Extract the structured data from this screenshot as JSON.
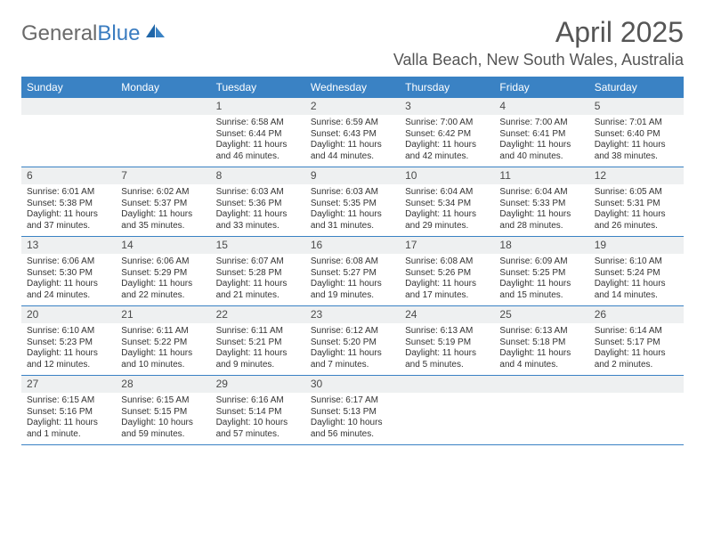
{
  "logo": {
    "general": "General",
    "blue": "Blue"
  },
  "title": "April 2025",
  "location": "Valla Beach, New South Wales, Australia",
  "colors": {
    "header_bg": "#3a82c4",
    "header_text": "#ffffff",
    "daynum_bg": "#eef0f1",
    "text": "#333333",
    "title_text": "#555555",
    "border": "#3a82c4"
  },
  "day_names": [
    "Sunday",
    "Monday",
    "Tuesday",
    "Wednesday",
    "Thursday",
    "Friday",
    "Saturday"
  ],
  "weeks": [
    [
      {
        "day": "",
        "sunrise": "",
        "sunset": "",
        "daylight": ""
      },
      {
        "day": "",
        "sunrise": "",
        "sunset": "",
        "daylight": ""
      },
      {
        "day": "1",
        "sunrise": "Sunrise: 6:58 AM",
        "sunset": "Sunset: 6:44 PM",
        "daylight": "Daylight: 11 hours and 46 minutes."
      },
      {
        "day": "2",
        "sunrise": "Sunrise: 6:59 AM",
        "sunset": "Sunset: 6:43 PM",
        "daylight": "Daylight: 11 hours and 44 minutes."
      },
      {
        "day": "3",
        "sunrise": "Sunrise: 7:00 AM",
        "sunset": "Sunset: 6:42 PM",
        "daylight": "Daylight: 11 hours and 42 minutes."
      },
      {
        "day": "4",
        "sunrise": "Sunrise: 7:00 AM",
        "sunset": "Sunset: 6:41 PM",
        "daylight": "Daylight: 11 hours and 40 minutes."
      },
      {
        "day": "5",
        "sunrise": "Sunrise: 7:01 AM",
        "sunset": "Sunset: 6:40 PM",
        "daylight": "Daylight: 11 hours and 38 minutes."
      }
    ],
    [
      {
        "day": "6",
        "sunrise": "Sunrise: 6:01 AM",
        "sunset": "Sunset: 5:38 PM",
        "daylight": "Daylight: 11 hours and 37 minutes."
      },
      {
        "day": "7",
        "sunrise": "Sunrise: 6:02 AM",
        "sunset": "Sunset: 5:37 PM",
        "daylight": "Daylight: 11 hours and 35 minutes."
      },
      {
        "day": "8",
        "sunrise": "Sunrise: 6:03 AM",
        "sunset": "Sunset: 5:36 PM",
        "daylight": "Daylight: 11 hours and 33 minutes."
      },
      {
        "day": "9",
        "sunrise": "Sunrise: 6:03 AM",
        "sunset": "Sunset: 5:35 PM",
        "daylight": "Daylight: 11 hours and 31 minutes."
      },
      {
        "day": "10",
        "sunrise": "Sunrise: 6:04 AM",
        "sunset": "Sunset: 5:34 PM",
        "daylight": "Daylight: 11 hours and 29 minutes."
      },
      {
        "day": "11",
        "sunrise": "Sunrise: 6:04 AM",
        "sunset": "Sunset: 5:33 PM",
        "daylight": "Daylight: 11 hours and 28 minutes."
      },
      {
        "day": "12",
        "sunrise": "Sunrise: 6:05 AM",
        "sunset": "Sunset: 5:31 PM",
        "daylight": "Daylight: 11 hours and 26 minutes."
      }
    ],
    [
      {
        "day": "13",
        "sunrise": "Sunrise: 6:06 AM",
        "sunset": "Sunset: 5:30 PM",
        "daylight": "Daylight: 11 hours and 24 minutes."
      },
      {
        "day": "14",
        "sunrise": "Sunrise: 6:06 AM",
        "sunset": "Sunset: 5:29 PM",
        "daylight": "Daylight: 11 hours and 22 minutes."
      },
      {
        "day": "15",
        "sunrise": "Sunrise: 6:07 AM",
        "sunset": "Sunset: 5:28 PM",
        "daylight": "Daylight: 11 hours and 21 minutes."
      },
      {
        "day": "16",
        "sunrise": "Sunrise: 6:08 AM",
        "sunset": "Sunset: 5:27 PM",
        "daylight": "Daylight: 11 hours and 19 minutes."
      },
      {
        "day": "17",
        "sunrise": "Sunrise: 6:08 AM",
        "sunset": "Sunset: 5:26 PM",
        "daylight": "Daylight: 11 hours and 17 minutes."
      },
      {
        "day": "18",
        "sunrise": "Sunrise: 6:09 AM",
        "sunset": "Sunset: 5:25 PM",
        "daylight": "Daylight: 11 hours and 15 minutes."
      },
      {
        "day": "19",
        "sunrise": "Sunrise: 6:10 AM",
        "sunset": "Sunset: 5:24 PM",
        "daylight": "Daylight: 11 hours and 14 minutes."
      }
    ],
    [
      {
        "day": "20",
        "sunrise": "Sunrise: 6:10 AM",
        "sunset": "Sunset: 5:23 PM",
        "daylight": "Daylight: 11 hours and 12 minutes."
      },
      {
        "day": "21",
        "sunrise": "Sunrise: 6:11 AM",
        "sunset": "Sunset: 5:22 PM",
        "daylight": "Daylight: 11 hours and 10 minutes."
      },
      {
        "day": "22",
        "sunrise": "Sunrise: 6:11 AM",
        "sunset": "Sunset: 5:21 PM",
        "daylight": "Daylight: 11 hours and 9 minutes."
      },
      {
        "day": "23",
        "sunrise": "Sunrise: 6:12 AM",
        "sunset": "Sunset: 5:20 PM",
        "daylight": "Daylight: 11 hours and 7 minutes."
      },
      {
        "day": "24",
        "sunrise": "Sunrise: 6:13 AM",
        "sunset": "Sunset: 5:19 PM",
        "daylight": "Daylight: 11 hours and 5 minutes."
      },
      {
        "day": "25",
        "sunrise": "Sunrise: 6:13 AM",
        "sunset": "Sunset: 5:18 PM",
        "daylight": "Daylight: 11 hours and 4 minutes."
      },
      {
        "day": "26",
        "sunrise": "Sunrise: 6:14 AM",
        "sunset": "Sunset: 5:17 PM",
        "daylight": "Daylight: 11 hours and 2 minutes."
      }
    ],
    [
      {
        "day": "27",
        "sunrise": "Sunrise: 6:15 AM",
        "sunset": "Sunset: 5:16 PM",
        "daylight": "Daylight: 11 hours and 1 minute."
      },
      {
        "day": "28",
        "sunrise": "Sunrise: 6:15 AM",
        "sunset": "Sunset: 5:15 PM",
        "daylight": "Daylight: 10 hours and 59 minutes."
      },
      {
        "day": "29",
        "sunrise": "Sunrise: 6:16 AM",
        "sunset": "Sunset: 5:14 PM",
        "daylight": "Daylight: 10 hours and 57 minutes."
      },
      {
        "day": "30",
        "sunrise": "Sunrise: 6:17 AM",
        "sunset": "Sunset: 5:13 PM",
        "daylight": "Daylight: 10 hours and 56 minutes."
      },
      {
        "day": "",
        "sunrise": "",
        "sunset": "",
        "daylight": ""
      },
      {
        "day": "",
        "sunrise": "",
        "sunset": "",
        "daylight": ""
      },
      {
        "day": "",
        "sunrise": "",
        "sunset": "",
        "daylight": ""
      }
    ]
  ]
}
